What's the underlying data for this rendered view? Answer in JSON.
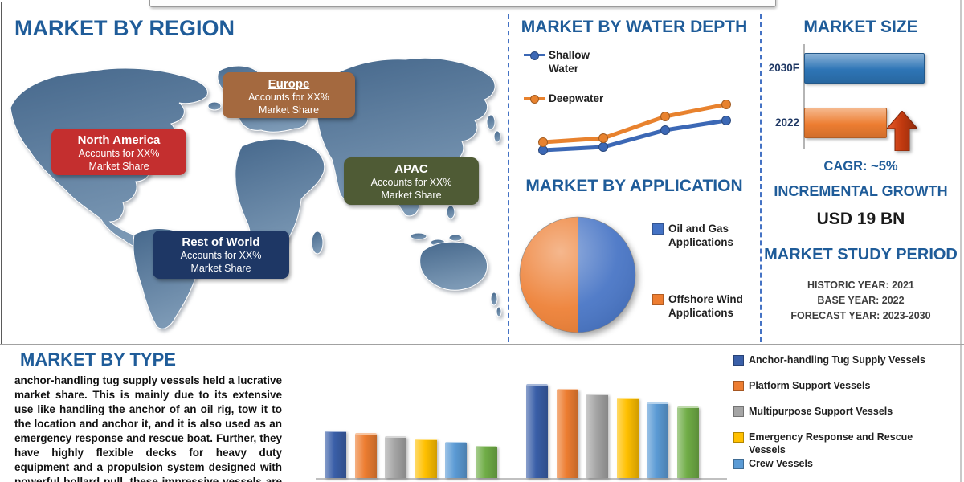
{
  "banner": {
    "text": ""
  },
  "sections": {
    "region": {
      "title": "MARKET BY REGION",
      "regions": [
        {
          "name": "North America",
          "line1": "Accounts for XX%",
          "line2": "Market Share",
          "color": "#C42F2F"
        },
        {
          "name": "Europe",
          "line1": "Accounts for XX%",
          "line2": "Market Share",
          "color": "#A4693F"
        },
        {
          "name": "APAC",
          "line1": "Accounts for XX%",
          "line2": "Market Share",
          "color": "#4F5B35"
        },
        {
          "name": "Rest of World",
          "line1": "Accounts for XX%",
          "line2": "Market Share",
          "color": "#1E3765"
        }
      ]
    },
    "water_depth": {
      "title": "MARKET BY WATER DEPTH"
    },
    "application": {
      "title": "MARKET BY APPLICATION"
    },
    "market_size": {
      "title": "MARKET SIZE",
      "cagr": "CAGR:  ~5%",
      "bar_labels": [
        "2030F",
        "2022"
      ],
      "bar_colors": [
        "#2E75B6",
        "#ED7D31"
      ],
      "arrow_color": "#C0390F"
    },
    "incremental_growth": {
      "title": "INCREMENTAL GROWTH",
      "value": "USD 19 BN"
    },
    "study_period": {
      "title": "MARKET STUDY PERIOD",
      "lines": [
        "HISTORIC YEAR: 2021",
        "BASE YEAR: 2022",
        "FORECAST YEAR: 2023-2030"
      ]
    },
    "type": {
      "title": "MARKET BY TYPE",
      "paragraph": "anchor-handling tug supply vessels held a lucrative market share. This is mainly due to its extensive use like handling the anchor of an oil rig, tow it to the location and anchor it, and it is also used as an emergency response and rescue boat. Further, they have highly flexible decks for heavy duty equipment and a propulsion system designed with powerful bollard pull, these impressive vessels are known for"
    }
  },
  "chart_data": [
    {
      "id": "water-depth",
      "type": "line",
      "title": "MARKET BY WATER DEPTH",
      "x": [
        1,
        2,
        3,
        4
      ],
      "x_tick_labels": [],
      "series": [
        {
          "name": "Shallow Water",
          "color": "#3C68B5",
          "values": [
            13,
            17,
            38,
            50
          ]
        },
        {
          "name": "Deepwater",
          "color": "#E8822E",
          "values": [
            23,
            28,
            55,
            70
          ]
        }
      ],
      "legend_position": "top-left",
      "grid": false,
      "note": "axis unlabeled; values estimated relative units, both series rising"
    },
    {
      "id": "application",
      "type": "pie",
      "title": "MARKET BY APPLICATION",
      "slices": [
        {
          "label": "Oil and Gas Applications",
          "value": 50,
          "color": "#4472C4"
        },
        {
          "label": "Offshore Wind Applications",
          "value": 50,
          "color": "#ED7D31"
        }
      ],
      "legend_position": "right"
    },
    {
      "id": "market-size",
      "type": "bar-horizontal",
      "title": "MARKET SIZE",
      "categories": [
        "2030F",
        "2022"
      ],
      "values": [
        100,
        68
      ],
      "colors": [
        "#2E75B6",
        "#ED7D31"
      ],
      "annotation": "CAGR:  ~5%",
      "note": "bar lengths relative; no value axis shown"
    },
    {
      "id": "market-by-type",
      "type": "bar-grouped",
      "title": "MARKET BY TYPE",
      "categories": [
        "",
        ""
      ],
      "series": [
        {
          "name": "Anchor-handling Tug Supply Vessels",
          "color": "#3A5FA8",
          "values": [
            57,
            115
          ]
        },
        {
          "name": "Platform Support Vessels",
          "color": "#ED7D31",
          "values": [
            54,
            109
          ]
        },
        {
          "name": "Multipurpose Support Vessels",
          "color": "#A5A5A5",
          "values": [
            50,
            103
          ]
        },
        {
          "name": "Emergency Response and Rescue Vessels",
          "color": "#FFC000",
          "values": [
            47,
            98
          ]
        },
        {
          "name": "Crew Vessels",
          "color": "#5B9BD5",
          "values": [
            43,
            92
          ]
        },
        {
          "name": "",
          "color": "#70AD47",
          "values": [
            38,
            87
          ]
        }
      ],
      "legend_position": "right",
      "note": "sixth (green) series legend label not visible in image; values relative, no axis labels shown"
    }
  ]
}
